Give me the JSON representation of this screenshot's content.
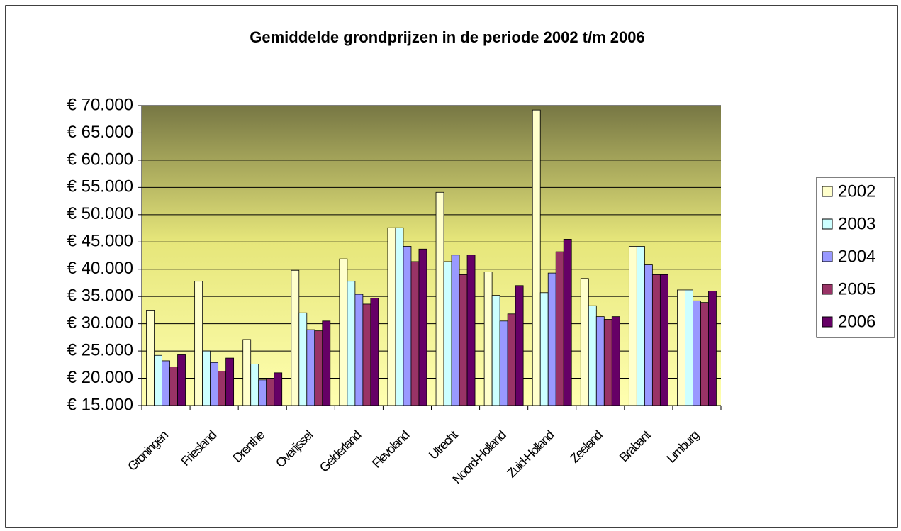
{
  "chart_data": {
    "type": "bar",
    "title": "Gemiddelde grondprijzen in de periode 2002 t/m 2006",
    "categories": [
      "Groningen",
      "Friesland",
      "Drenthe",
      "Overijssel",
      "Gelderland",
      "Flevoland",
      "Utrecht",
      "Noord-Holland",
      "Zuid-Holland",
      "Zeeland",
      "Brabant",
      "Limburg"
    ],
    "series": [
      {
        "name": "2002",
        "color": "#ffffcc",
        "values": [
          32500,
          37800,
          27100,
          39800,
          41900,
          47600,
          54100,
          39500,
          69200,
          38300,
          44200,
          36200
        ]
      },
      {
        "name": "2003",
        "color": "#ccffff",
        "values": [
          24200,
          25000,
          22600,
          32000,
          37800,
          47600,
          41400,
          35200,
          35700,
          33300,
          44200,
          36200
        ]
      },
      {
        "name": "2004",
        "color": "#9999ff",
        "values": [
          23200,
          22900,
          19700,
          28900,
          35400,
          44200,
          42600,
          30500,
          39300,
          31300,
          40800,
          34200
        ]
      },
      {
        "name": "2005",
        "color": "#993366",
        "values": [
          22100,
          21300,
          20000,
          28700,
          33600,
          41400,
          39000,
          31800,
          43200,
          30800,
          39000,
          33900
        ]
      },
      {
        "name": "2006",
        "color": "#660066",
        "values": [
          24300,
          23700,
          21000,
          30500,
          34700,
          43700,
          42600,
          37000,
          45500,
          31300,
          39000,
          36000
        ]
      }
    ],
    "ylim": [
      15000,
      70000
    ],
    "yticks": [
      {
        "value": 15000,
        "label": "€ 15.000"
      },
      {
        "value": 20000,
        "label": "€ 20.000"
      },
      {
        "value": 25000,
        "label": "€ 25.000"
      },
      {
        "value": 30000,
        "label": "€ 30.000"
      },
      {
        "value": 35000,
        "label": "€ 35.000"
      },
      {
        "value": 40000,
        "label": "€ 40.000"
      },
      {
        "value": 45000,
        "label": "€ 45.000"
      },
      {
        "value": 50000,
        "label": "€ 50.000"
      },
      {
        "value": 55000,
        "label": "€ 55.000"
      },
      {
        "value": 60000,
        "label": "€ 60.000"
      },
      {
        "value": 65000,
        "label": "€ 65.000"
      },
      {
        "value": 70000,
        "label": "€ 70.000"
      }
    ],
    "grid": true,
    "legend": "right"
  }
}
